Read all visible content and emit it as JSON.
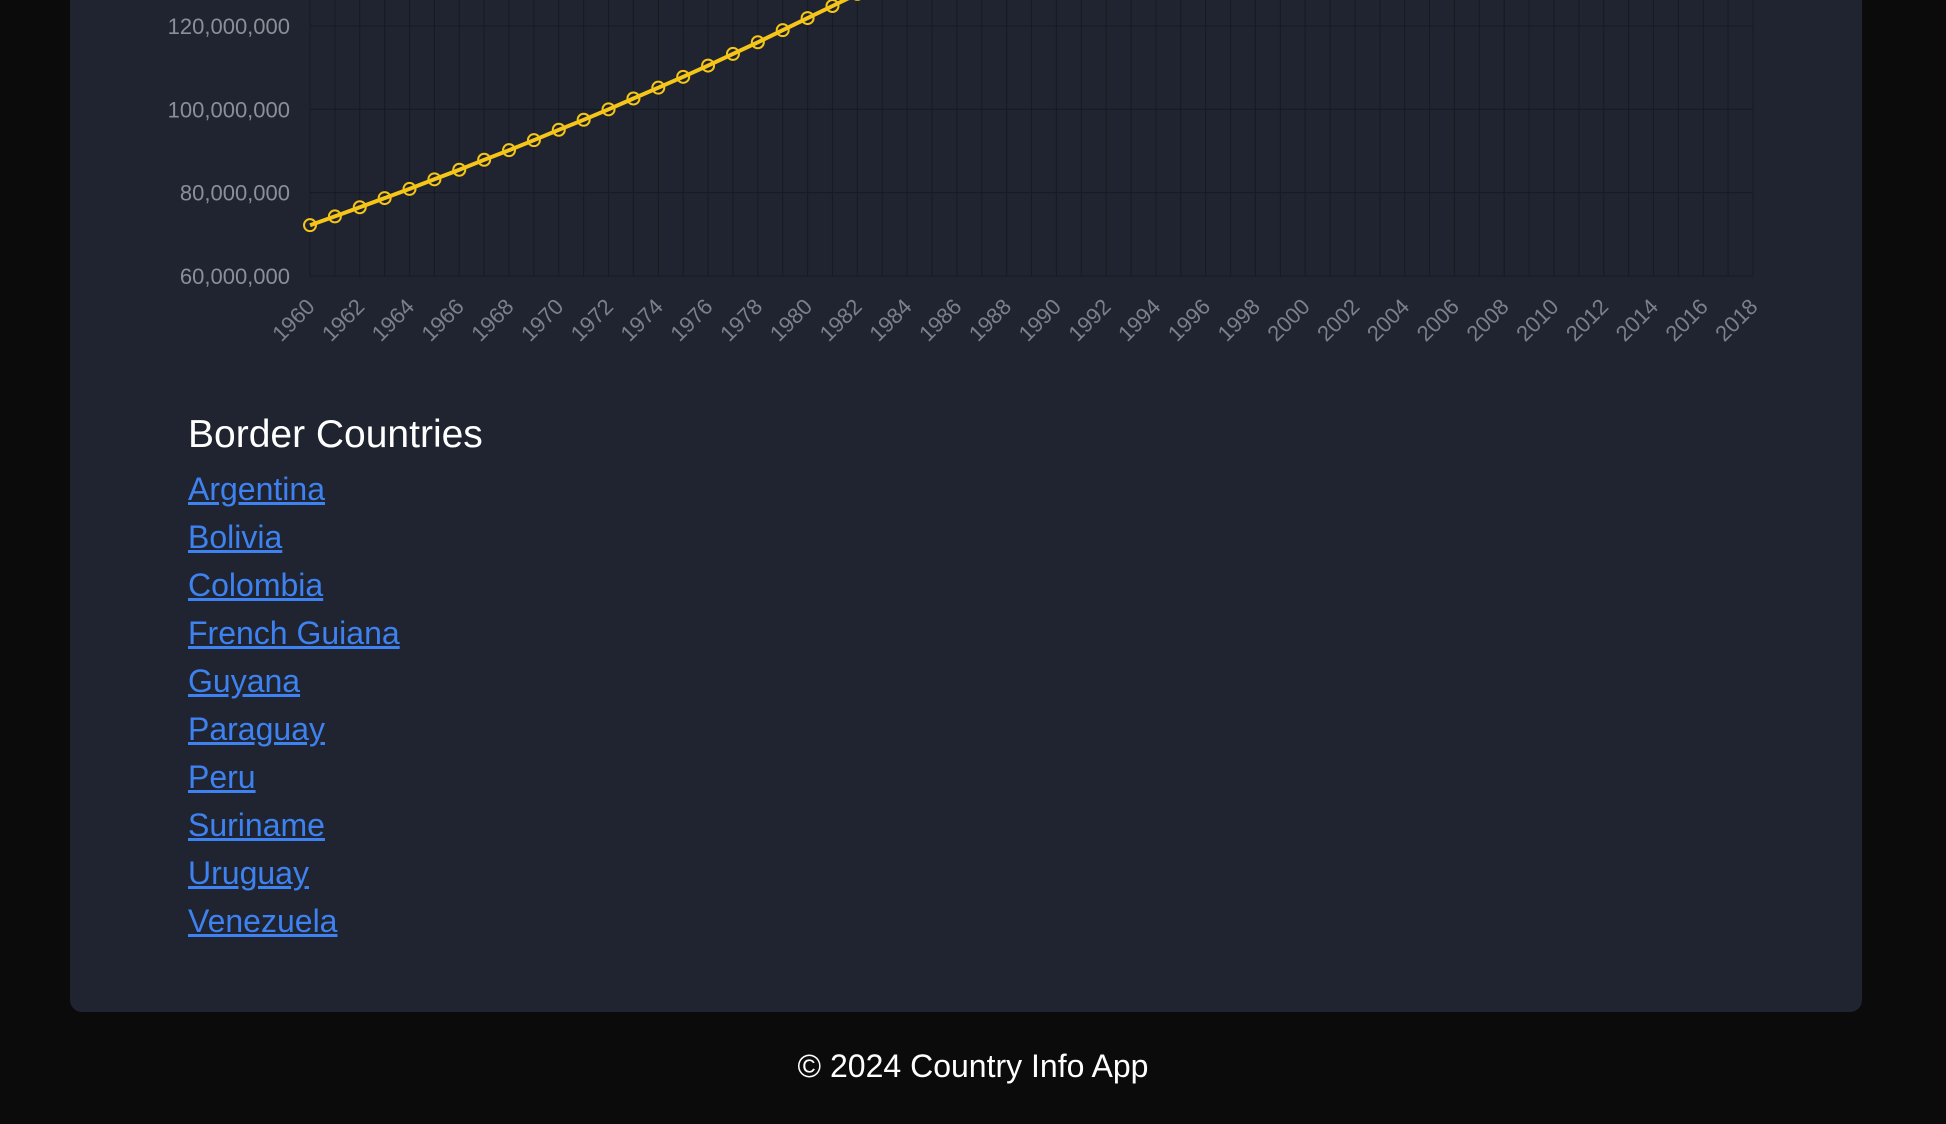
{
  "chart_data": {
    "type": "line",
    "title": "",
    "xlabel": "",
    "ylabel": "",
    "y_ticks": [
      "60,000,000",
      "80,000,000",
      "100,000,000",
      "120,000,000"
    ],
    "x_ticks": [
      "1960",
      "1962",
      "1964",
      "1966",
      "1968",
      "1970",
      "1972",
      "1974",
      "1976",
      "1978",
      "1980",
      "1982",
      "1984",
      "1986",
      "1988",
      "1990",
      "1992",
      "1994",
      "1996",
      "1998",
      "2000",
      "2002",
      "2004",
      "2006",
      "2008",
      "2010",
      "2012",
      "2014",
      "2016",
      "2018"
    ],
    "ylim_visible": [
      60000000,
      120000000
    ],
    "grid": true,
    "line_color": "#f5c518",
    "series": [
      {
        "x": [
          1960,
          1961,
          1962,
          1963,
          1964,
          1965,
          1966,
          1967,
          1968,
          1969,
          1970,
          1971,
          1972,
          1973,
          1974,
          1975,
          1976,
          1977,
          1978,
          1979,
          1980,
          1981,
          1982
        ],
        "values": [
          72200000,
          74300000,
          76500000,
          78700000,
          80900000,
          83200000,
          85500000,
          87900000,
          90200000,
          92600000,
          95100000,
          97500000,
          100000000,
          102600000,
          105200000,
          107800000,
          110500000,
          113300000,
          116100000,
          119000000,
          121900000,
          124800000,
          127700000
        ]
      }
    ]
  },
  "borders": {
    "title": "Border Countries",
    "countries": [
      "Argentina",
      "Bolivia",
      "Colombia",
      "French Guiana",
      "Guyana",
      "Paraguay",
      "Peru",
      "Suriname",
      "Uruguay",
      "Venezuela"
    ]
  },
  "footer": {
    "text": "© 2024 Country Info App"
  }
}
